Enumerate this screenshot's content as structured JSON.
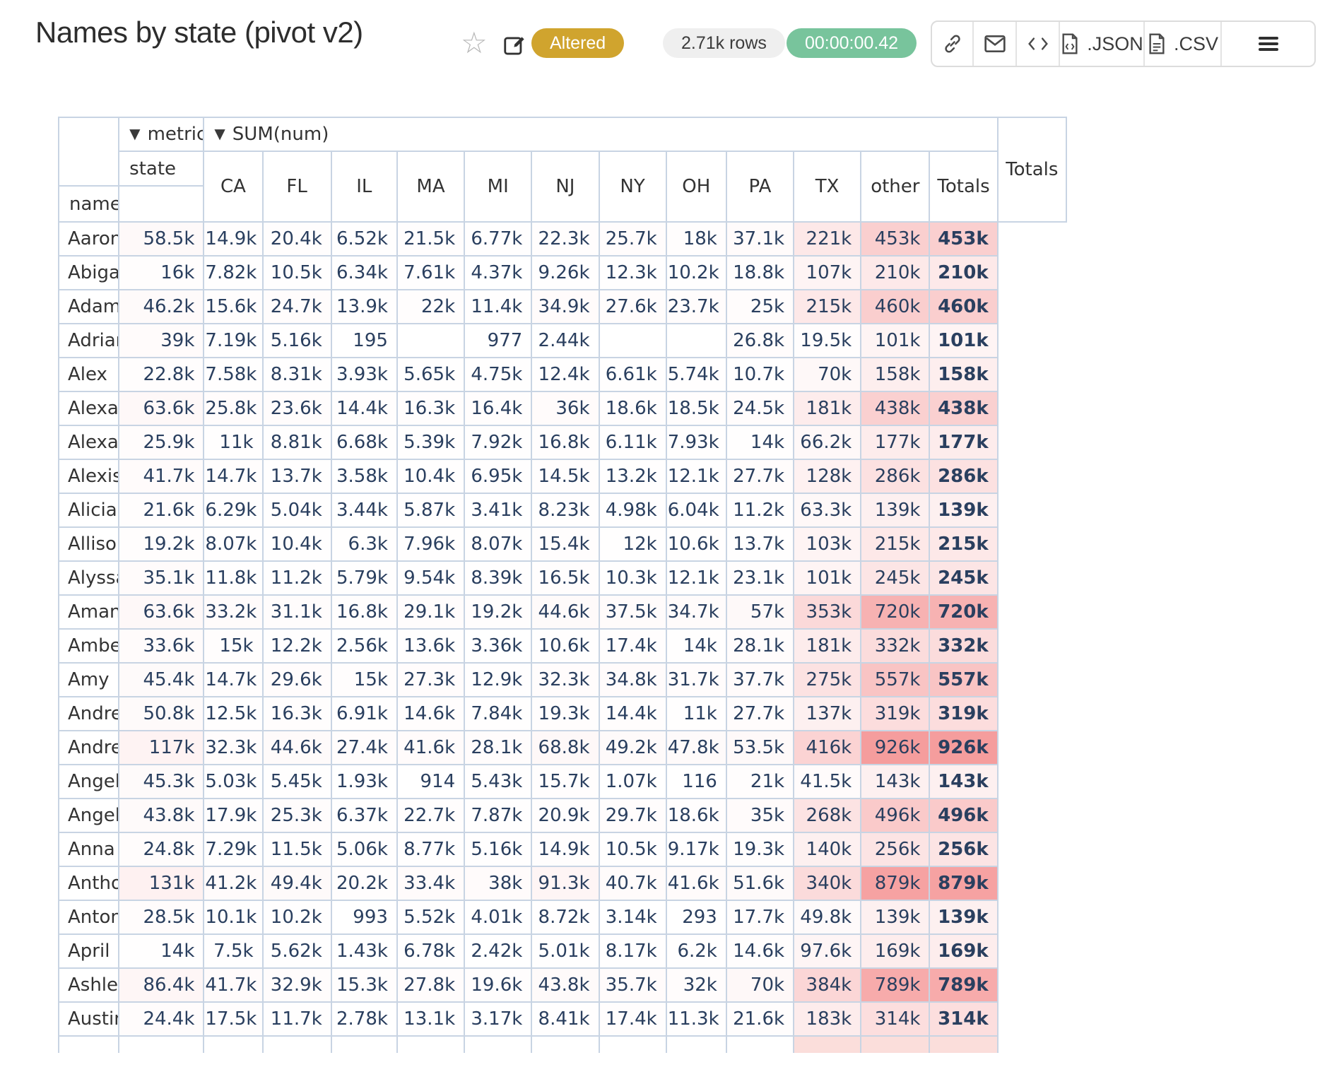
{
  "header": {
    "title": "Names by state (pivot v2)",
    "status_badge": "Altered",
    "rows_badge": "2.71k rows",
    "timer_badge": "00:00:00.42",
    "export_json_label": ".JSON",
    "export_csv_label": ".CSV"
  },
  "colors": {
    "status_badge_bg": "#d0a42e",
    "timer_badge_bg": "#78c49c",
    "table_border": "#c8d4e3",
    "number_text": "#2a3f5f",
    "heatmap_max_color": "#ff9898"
  },
  "pivot": {
    "metric_arrow": "▼",
    "metric_axis": "metric",
    "value_arrow": "▼",
    "value_label": "SUM(num)",
    "col_axis": "state",
    "row_axis": "name",
    "columns": [
      "CA",
      "FL",
      "IL",
      "MA",
      "MI",
      "NJ",
      "NY",
      "OH",
      "PA",
      "TX",
      "other"
    ],
    "totals_label": "Totals",
    "grand_totals_label": "Totals",
    "rows": [
      {
        "name": "Aaron",
        "values": [
          "58.5k",
          "14.9k",
          "20.4k",
          "6.52k",
          "21.5k",
          "6.77k",
          "22.3k",
          "25.7k",
          "18k",
          "37.1k",
          "221k"
        ],
        "total": "453k",
        "grand_total": "453k"
      },
      {
        "name": "Abigail",
        "values": [
          "16k",
          "7.82k",
          "10.5k",
          "6.34k",
          "7.61k",
          "4.37k",
          "9.26k",
          "12.3k",
          "10.2k",
          "18.8k",
          "107k"
        ],
        "total": "210k",
        "grand_total": "210k"
      },
      {
        "name": "Adam",
        "values": [
          "46.2k",
          "15.6k",
          "24.7k",
          "13.9k",
          "22k",
          "11.4k",
          "34.9k",
          "27.6k",
          "23.7k",
          "25k",
          "215k"
        ],
        "total": "460k",
        "grand_total": "460k"
      },
      {
        "name": "Adrian",
        "values": [
          "39k",
          "7.19k",
          "5.16k",
          "195",
          "",
          "977",
          "2.44k",
          "",
          "",
          "26.8k",
          "19.5k"
        ],
        "total": "101k",
        "grand_total": "101k"
      },
      {
        "name": "Alex",
        "values": [
          "22.8k",
          "7.58k",
          "8.31k",
          "3.93k",
          "5.65k",
          "4.75k",
          "12.4k",
          "6.61k",
          "5.74k",
          "10.7k",
          "70k"
        ],
        "total": "158k",
        "grand_total": "158k"
      },
      {
        "name": "Alexander",
        "values": [
          "63.6k",
          "25.8k",
          "23.6k",
          "14.4k",
          "16.3k",
          "16.4k",
          "36k",
          "18.6k",
          "18.5k",
          "24.5k",
          "181k"
        ],
        "total": "438k",
        "grand_total": "438k"
      },
      {
        "name": "Alexandra",
        "values": [
          "25.9k",
          "11k",
          "8.81k",
          "6.68k",
          "5.39k",
          "7.92k",
          "16.8k",
          "6.11k",
          "7.93k",
          "14k",
          "66.2k"
        ],
        "total": "177k",
        "grand_total": "177k"
      },
      {
        "name": "Alexis",
        "values": [
          "41.7k",
          "14.7k",
          "13.7k",
          "3.58k",
          "10.4k",
          "6.95k",
          "14.5k",
          "13.2k",
          "12.1k",
          "27.7k",
          "128k"
        ],
        "total": "286k",
        "grand_total": "286k"
      },
      {
        "name": "Alicia",
        "values": [
          "21.6k",
          "6.29k",
          "5.04k",
          "3.44k",
          "5.87k",
          "3.41k",
          "8.23k",
          "4.98k",
          "6.04k",
          "11.2k",
          "63.3k"
        ],
        "total": "139k",
        "grand_total": "139k"
      },
      {
        "name": "Allison",
        "values": [
          "19.2k",
          "8.07k",
          "10.4k",
          "6.3k",
          "7.96k",
          "8.07k",
          "15.4k",
          "12k",
          "10.6k",
          "13.7k",
          "103k"
        ],
        "total": "215k",
        "grand_total": "215k"
      },
      {
        "name": "Alyssa",
        "values": [
          "35.1k",
          "11.8k",
          "11.2k",
          "5.79k",
          "9.54k",
          "8.39k",
          "16.5k",
          "10.3k",
          "12.1k",
          "23.1k",
          "101k"
        ],
        "total": "245k",
        "grand_total": "245k"
      },
      {
        "name": "Amanda",
        "values": [
          "63.6k",
          "33.2k",
          "31.1k",
          "16.8k",
          "29.1k",
          "19.2k",
          "44.6k",
          "37.5k",
          "34.7k",
          "57k",
          "353k"
        ],
        "total": "720k",
        "grand_total": "720k"
      },
      {
        "name": "Amber",
        "values": [
          "33.6k",
          "15k",
          "12.2k",
          "2.56k",
          "13.6k",
          "3.36k",
          "10.6k",
          "17.4k",
          "14k",
          "28.1k",
          "181k"
        ],
        "total": "332k",
        "grand_total": "332k"
      },
      {
        "name": "Amy",
        "values": [
          "45.4k",
          "14.7k",
          "29.6k",
          "15k",
          "27.3k",
          "12.9k",
          "32.3k",
          "34.8k",
          "31.7k",
          "37.7k",
          "275k"
        ],
        "total": "557k",
        "grand_total": "557k"
      },
      {
        "name": "Andrea",
        "values": [
          "50.8k",
          "12.5k",
          "16.3k",
          "6.91k",
          "14.6k",
          "7.84k",
          "19.3k",
          "14.4k",
          "11k",
          "27.7k",
          "137k"
        ],
        "total": "319k",
        "grand_total": "319k"
      },
      {
        "name": "Andrew",
        "values": [
          "117k",
          "32.3k",
          "44.6k",
          "27.4k",
          "41.6k",
          "28.1k",
          "68.8k",
          "49.2k",
          "47.8k",
          "53.5k",
          "416k"
        ],
        "total": "926k",
        "grand_total": "926k"
      },
      {
        "name": "Angel",
        "values": [
          "45.3k",
          "5.03k",
          "5.45k",
          "1.93k",
          "914",
          "5.43k",
          "15.7k",
          "1.07k",
          "116",
          "21k",
          "41.5k"
        ],
        "total": "143k",
        "grand_total": "143k"
      },
      {
        "name": "Angela",
        "values": [
          "43.8k",
          "17.9k",
          "25.3k",
          "6.37k",
          "22.7k",
          "7.87k",
          "20.9k",
          "29.7k",
          "18.6k",
          "35k",
          "268k"
        ],
        "total": "496k",
        "grand_total": "496k"
      },
      {
        "name": "Anna",
        "values": [
          "24.8k",
          "7.29k",
          "11.5k",
          "5.06k",
          "8.77k",
          "5.16k",
          "14.9k",
          "10.5k",
          "9.17k",
          "19.3k",
          "140k"
        ],
        "total": "256k",
        "grand_total": "256k"
      },
      {
        "name": "Anthony",
        "values": [
          "131k",
          "41.2k",
          "49.4k",
          "20.2k",
          "33.4k",
          "38k",
          "91.3k",
          "40.7k",
          "41.6k",
          "51.6k",
          "340k"
        ],
        "total": "879k",
        "grand_total": "879k"
      },
      {
        "name": "Antonio",
        "values": [
          "28.5k",
          "10.1k",
          "10.2k",
          "993",
          "5.52k",
          "4.01k",
          "8.72k",
          "3.14k",
          "293",
          "17.7k",
          "49.8k"
        ],
        "total": "139k",
        "grand_total": "139k"
      },
      {
        "name": "April",
        "values": [
          "14k",
          "7.5k",
          "5.62k",
          "1.43k",
          "6.78k",
          "2.42k",
          "5.01k",
          "8.17k",
          "6.2k",
          "14.6k",
          "97.6k"
        ],
        "total": "169k",
        "grand_total": "169k"
      },
      {
        "name": "Ashley",
        "values": [
          "86.4k",
          "41.7k",
          "32.9k",
          "15.3k",
          "27.8k",
          "19.6k",
          "43.8k",
          "35.7k",
          "32k",
          "70k",
          "384k"
        ],
        "total": "789k",
        "grand_total": "789k"
      },
      {
        "name": "Austin",
        "values": [
          "24.4k",
          "17.5k",
          "11.7k",
          "2.78k",
          "13.1k",
          "3.17k",
          "8.41k",
          "17.4k",
          "11.3k",
          "21.6k",
          "183k"
        ],
        "total": "314k",
        "grand_total": "314k"
      }
    ]
  }
}
